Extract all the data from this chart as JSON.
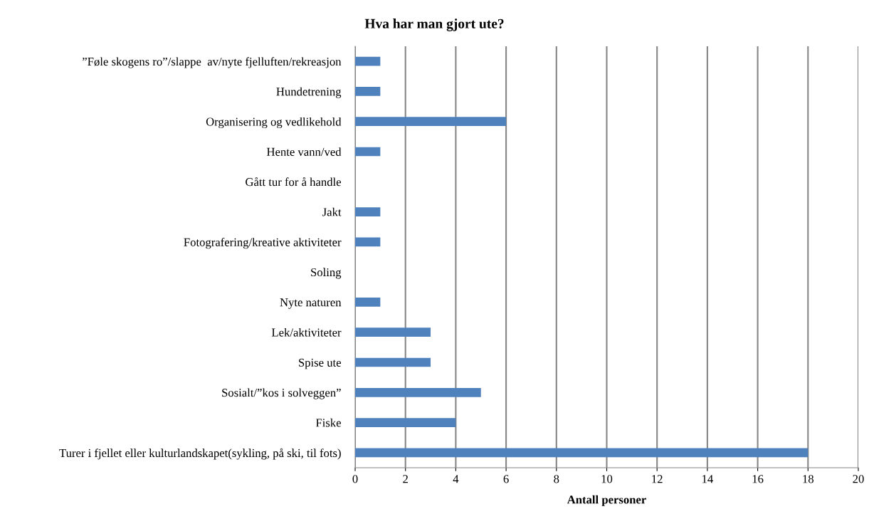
{
  "chart_data": {
    "type": "bar",
    "orientation": "horizontal",
    "title": "Hva har man gjort ute?",
    "xlabel": "Antall personer",
    "categories": [
      "”Føle skogens ro”/slappe  av/nyte fjelluften/rekreasjon",
      "Hundetrening",
      "Organisering og vedlikehold",
      "Hente vann/ved",
      "Gått tur for å handle",
      "Jakt",
      "Fotografering/kreative aktiviteter",
      "Soling",
      "Nyte naturen",
      "Lek/aktiviteter",
      "Spise ute",
      "Sosialt/”kos i solveggen”",
      "Fiske",
      "Turer i fjellet eller kulturlandskapet(sykling, på ski, til fots)"
    ],
    "values": [
      1,
      1,
      6,
      1,
      0,
      1,
      1,
      0,
      1,
      3,
      3,
      5,
      4,
      18
    ],
    "color": "#4f81bd",
    "xlim": [
      0,
      20
    ],
    "xticks": [
      0,
      2,
      4,
      6,
      8,
      10,
      12,
      14,
      16,
      18,
      20
    ],
    "grid": "x"
  }
}
